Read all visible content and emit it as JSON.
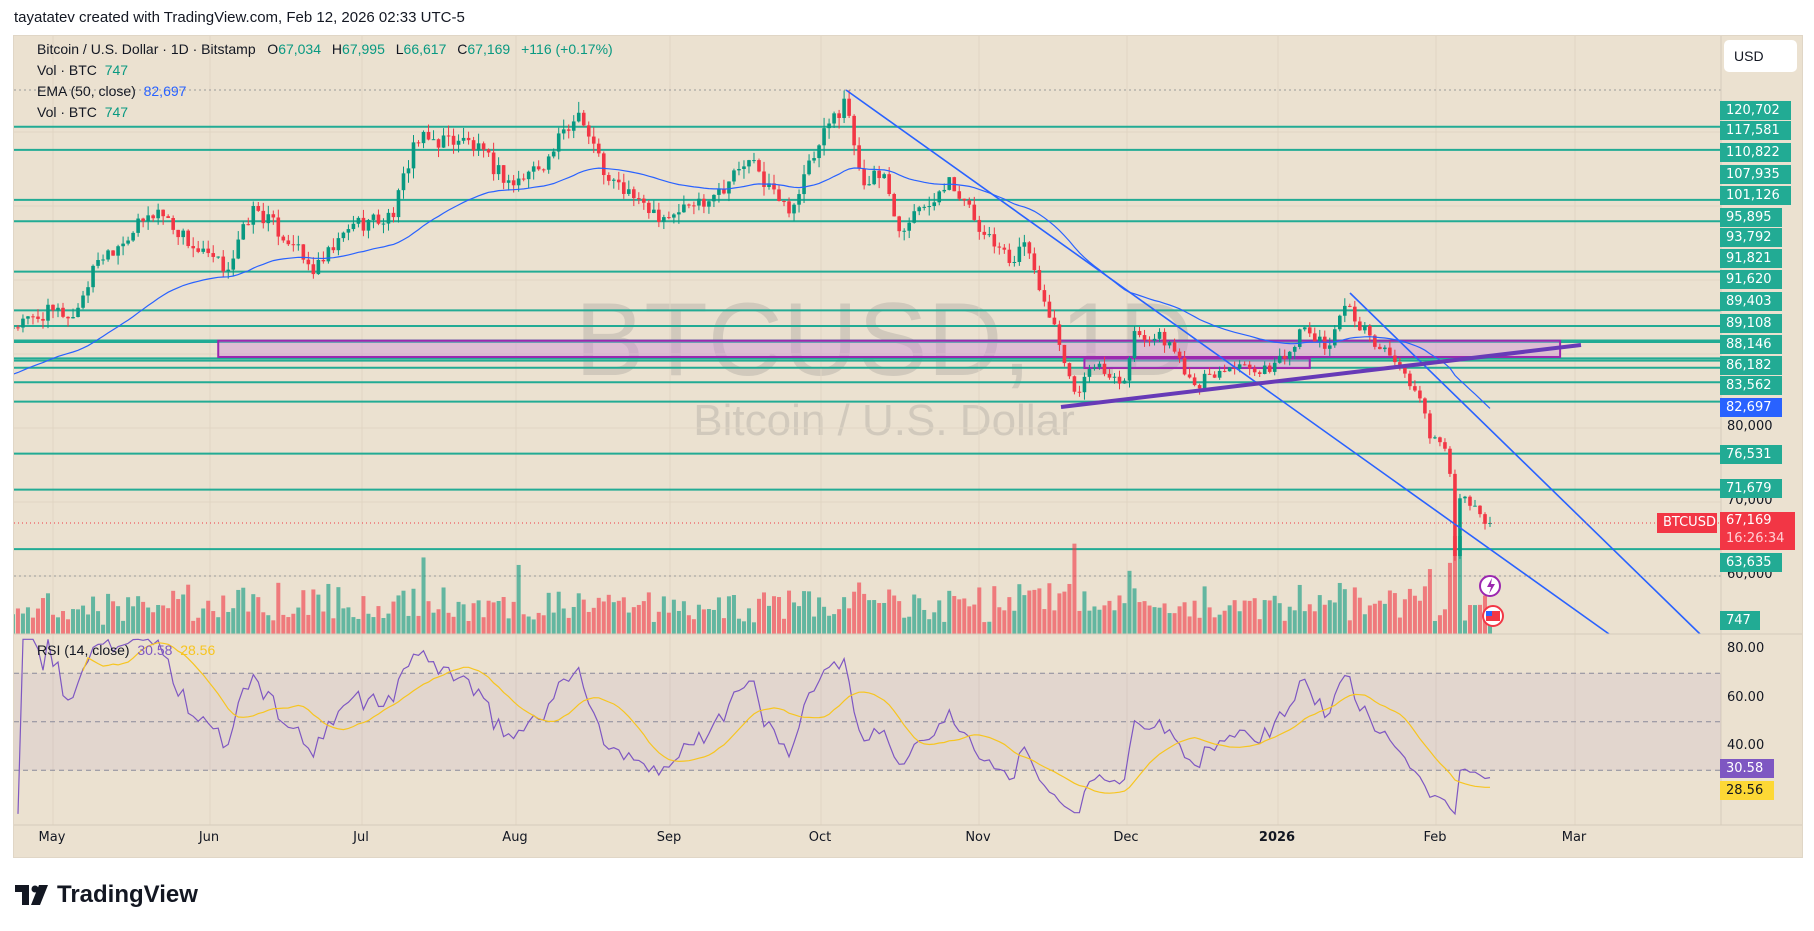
{
  "attribution": "tayatatev created with TradingView.com, Feb 12, 2026 02:33 UTC-5",
  "header": {
    "symbol": "Bitcoin / U.S. Dollar · 1D · Bitstamp",
    "o_label": "O",
    "open": "67,034",
    "h_label": "H",
    "high": "67,995",
    "l_label": "L",
    "low": "66,617",
    "c_label": "C",
    "close": "67,169",
    "change": "+116 (+0.17%)"
  },
  "legend": {
    "vol1_label": "Vol · BTC",
    "vol1_value": "747",
    "ema_label": "EMA (50, close)",
    "ema_value": "82,697",
    "vol2_label": "Vol · BTC",
    "vol2_value": "747"
  },
  "rsi": {
    "label": "RSI (14, close)",
    "value": "30.58",
    "ma_value": "28.56"
  },
  "price_axis": {
    "currency": "USD",
    "levels": [
      "120,702",
      "117,581",
      "110,822",
      "107,935",
      "101,126",
      "95,895",
      "93,792",
      "91,821",
      "91,620",
      "89,403",
      "89,108",
      "88,146",
      "86,182",
      "83,562",
      "76,531",
      "71,679",
      "63,635"
    ],
    "ticks": [
      "80,000",
      "70,000",
      "60,000"
    ],
    "ema_tag": "82,697",
    "last_symbol": "BTCUSD",
    "last_price": "67,169",
    "countdown": "16:26:34",
    "volume_tag": "747"
  },
  "rsi_axis": {
    "ticks": [
      "80.00",
      "60.00",
      "40.00"
    ]
  },
  "time_axis": [
    "May",
    "Jun",
    "Jul",
    "Aug",
    "Sep",
    "Oct",
    "Nov",
    "Dec",
    "2026",
    "Feb",
    "Mar"
  ],
  "watermark": {
    "symbol": "BTCUSD, 1D",
    "name": "Bitcoin / U.S. Dollar"
  },
  "brand": {
    "logo_text": "TV",
    "name": "TradingView"
  },
  "colors": {
    "up": "#089981",
    "down": "#f23645",
    "level": "#22ab94",
    "ema": "#2962ff",
    "trendline": "#2962ff",
    "channel": "#673ab7",
    "zone": "#9c27b0",
    "rsi": "#7e57c2",
    "rsi_ma": "#f7c520",
    "background": "#ebe1d0"
  },
  "chart_data": {
    "type": "candlestick",
    "symbol": "BTCUSD",
    "interval": "1D",
    "y_scale": "linear",
    "ylim": [
      55000,
      126000
    ],
    "last_candle": {
      "date": "2026-02-12",
      "open": 67034,
      "high": 67995,
      "low": 66617,
      "close": 67169,
      "volume": 747
    },
    "approx_closes": [
      [
        "2025-04-23",
        93600
      ],
      [
        "2025-05-01",
        95900
      ],
      [
        "2025-05-05",
        95000
      ],
      [
        "2025-05-10",
        102700
      ],
      [
        "2025-05-22",
        109500
      ],
      [
        "2025-05-30",
        103800
      ],
      [
        "2025-06-05",
        101400
      ],
      [
        "2025-06-10",
        110000
      ],
      [
        "2025-06-18",
        104700
      ],
      [
        "2025-06-22",
        100800
      ],
      [
        "2025-06-30",
        107600
      ],
      [
        "2025-07-08",
        108500
      ],
      [
        "2025-07-12",
        118600
      ],
      [
        "2025-07-22",
        119200
      ],
      [
        "2025-08-01",
        112800
      ],
      [
        "2025-08-08",
        116700
      ],
      [
        "2025-08-14",
        122600
      ],
      [
        "2025-08-20",
        113400
      ],
      [
        "2025-08-26",
        111000
      ],
      [
        "2025-08-31",
        108500
      ],
      [
        "2025-09-10",
        111500
      ],
      [
        "2025-09-17",
        116200
      ],
      [
        "2025-09-25",
        109000
      ],
      [
        "2025-10-01",
        118200
      ],
      [
        "2025-10-06",
        124500
      ],
      [
        "2025-10-10",
        112800
      ],
      [
        "2025-10-14",
        114300
      ],
      [
        "2025-10-17",
        106600
      ],
      [
        "2025-10-27",
        113900
      ],
      [
        "2025-11-03",
        106100
      ],
      [
        "2025-11-08",
        102300
      ],
      [
        "2025-11-11",
        105100
      ],
      [
        "2025-11-17",
        94000
      ],
      [
        "2025-11-21",
        84900
      ],
      [
        "2025-11-25",
        88200
      ],
      [
        "2025-12-01",
        86400
      ],
      [
        "2025-12-03",
        93100
      ],
      [
        "2025-12-10",
        91600
      ],
      [
        "2025-12-15",
        85800
      ],
      [
        "2025-12-22",
        88200
      ],
      [
        "2025-12-28",
        87300
      ],
      [
        "2026-01-03",
        90300
      ],
      [
        "2026-01-06",
        93600
      ],
      [
        "2026-01-10",
        90700
      ],
      [
        "2026-01-14",
        96500
      ],
      [
        "2026-01-19",
        92500
      ],
      [
        "2026-01-25",
        88200
      ],
      [
        "2026-01-29",
        84000
      ],
      [
        "2026-01-31",
        78600
      ],
      [
        "2026-02-03",
        77200
      ],
      [
        "2026-02-04",
        73800
      ],
      [
        "2026-02-05",
        62700
      ],
      [
        "2026-02-06",
        70500
      ],
      [
        "2026-02-09",
        69500
      ],
      [
        "2026-02-11",
        67050
      ],
      [
        "2026-02-12",
        67169
      ]
    ],
    "indicators": {
      "ema": {
        "length": 50,
        "source": "close",
        "last": 82697
      },
      "rsi": {
        "length": 14,
        "last": 30.58,
        "ma_last": 28.56,
        "bands": [
          70,
          50,
          30
        ],
        "ylim": [
          10,
          85
        ]
      }
    },
    "drawings": {
      "zone": {
        "price_top": 91800,
        "price_bottom": 89600,
        "from": "2025-06-03",
        "to": "2026-02-26"
      },
      "small_zone": {
        "price_top": 89400,
        "price_bottom": 88100,
        "from": "2025-11-23",
        "to": "2026-01-07"
      }
    }
  }
}
